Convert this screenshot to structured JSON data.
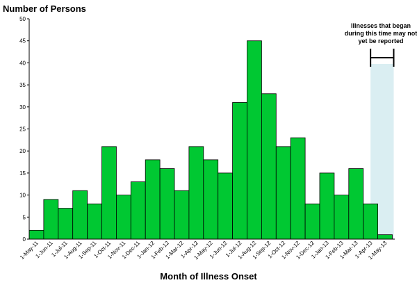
{
  "chart_data": {
    "type": "bar",
    "ylabel": "Number of Persons",
    "xlabel": "Month of Illness Onset",
    "ylim": [
      0,
      50
    ],
    "yticks": [
      0,
      5,
      10,
      15,
      20,
      25,
      30,
      35,
      40,
      45,
      50
    ],
    "grid": false,
    "legend": "none",
    "categories": [
      "1-May-11",
      "1-Jun-11",
      "1-Jul-11",
      "1-Aug-11",
      "1-Sep-11",
      "1-Oct-11",
      "1-Nov-11",
      "1-Dec-11",
      "1-Jan-12",
      "1-Feb-12",
      "1-Mar-12",
      "1-Apr-12",
      "1-May-12",
      "1-Jun-12",
      "1-Jul-12",
      "1-Aug-12",
      "1-Sep-12",
      "1-Oct-12",
      "1-Nov-12",
      "1-Dec-12",
      "1-Jan-13",
      "1-Feb-13",
      "1-Mar-13",
      "1-Apr-13",
      "1-May-13"
    ],
    "values": [
      2,
      9,
      7,
      11,
      8,
      21,
      10,
      13,
      18,
      16,
      11,
      21,
      18,
      15,
      31,
      45,
      33,
      21,
      23,
      8,
      15,
      10,
      16,
      8,
      1
    ],
    "annotation": {
      "text_lines": [
        "Illnesses that began",
        "during this time may not",
        "yet be reported"
      ],
      "range_start": "1-Apr-13",
      "range_end": "1-May-13"
    },
    "colors": {
      "bar_fill": "#00c832",
      "bar_stroke": "#000000",
      "highlight_fill": "#daeef2",
      "axis": "#000000"
    }
  }
}
